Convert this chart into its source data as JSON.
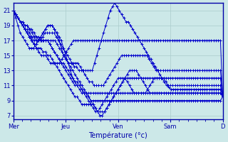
{
  "title": "",
  "xlabel": "Température (°c)",
  "ylabel": "",
  "bg_color": "#cce8e8",
  "grid_color": "#aacccc",
  "line_color": "#0000cc",
  "ylim": [
    6.5,
    22
  ],
  "yticks": [
    7,
    9,
    11,
    13,
    15,
    17,
    19,
    21
  ],
  "day_labels": [
    "Mer",
    "Jeu",
    "Ven",
    "Sam",
    "D"
  ],
  "day_positions": [
    0,
    24,
    48,
    72,
    96
  ],
  "series": [
    [
      21,
      20.5,
      20,
      19.5,
      19,
      18.5,
      18,
      17.5,
      17,
      16.5,
      16,
      15.5,
      15,
      15,
      15,
      14.5,
      14,
      14,
      14,
      14,
      14,
      14.5,
      15,
      15.5,
      16,
      16.5,
      17,
      17,
      17,
      17,
      17,
      17,
      17,
      17,
      17,
      17,
      17,
      17,
      17,
      17,
      17,
      17,
      17,
      17,
      17,
      17,
      17,
      17,
      17,
      17,
      17,
      17,
      17,
      17,
      17,
      17,
      17,
      17,
      17,
      17,
      17,
      17,
      17,
      17,
      17,
      17,
      17,
      17,
      17,
      17,
      17,
      17,
      17,
      17,
      17,
      17,
      17,
      17,
      17,
      17,
      17,
      17,
      17,
      17,
      17,
      17,
      17,
      17,
      17,
      17,
      17,
      9.5
    ],
    [
      21,
      20,
      19,
      18,
      17.5,
      17,
      16.5,
      16,
      16,
      16,
      16.5,
      17,
      17,
      17.5,
      18,
      18,
      18,
      18,
      18,
      17.5,
      17,
      16.5,
      16,
      15.5,
      15,
      14.5,
      14,
      13.5,
      13.5,
      13,
      13,
      13,
      13,
      13,
      13,
      13,
      14,
      15,
      16,
      17,
      18,
      19,
      20,
      21,
      21.5,
      22,
      21.5,
      21,
      20.5,
      20,
      19.5,
      19.5,
      19,
      18.5,
      18,
      17.5,
      17,
      16.5,
      16,
      15.5,
      15,
      14.5,
      14,
      13.5,
      13,
      12.5,
      12,
      11.5,
      11,
      10.8,
      10.5,
      10.5,
      10.5,
      10.5,
      10.5,
      10.5,
      10.5,
      10.5,
      10.5,
      10.5,
      10.5,
      10.5,
      10.5,
      10.5,
      10.5,
      10.5,
      10.5,
      10.5,
      10.5,
      10.5,
      10.5,
      10.5,
      10.5,
      9.5
    ],
    [
      21,
      20.5,
      20,
      19.5,
      19,
      18.5,
      18,
      17.5,
      17,
      16.5,
      16.5,
      17,
      17.5,
      18,
      18.5,
      19,
      19,
      19,
      18.5,
      18,
      17.5,
      17,
      16,
      15,
      14,
      13,
      12,
      11.5,
      11.5,
      11,
      10.5,
      10,
      9.5,
      9,
      8.5,
      8,
      7.5,
      7.5,
      8,
      8.5,
      9,
      9.5,
      10,
      10.5,
      11,
      11.5,
      12,
      12,
      12,
      12,
      11.5,
      11,
      10.5,
      10,
      10,
      10,
      10,
      10,
      10,
      10.5,
      11,
      11.5,
      12,
      12,
      12,
      12,
      12,
      11.5,
      11,
      11,
      11,
      11,
      11,
      11,
      11,
      11,
      11,
      11,
      11,
      11,
      11,
      11,
      11,
      11,
      11,
      11,
      11,
      11,
      11,
      11,
      11,
      11,
      9.5
    ],
    [
      21,
      20.5,
      20,
      19.5,
      19,
      18.5,
      18,
      17.5,
      17,
      16.5,
      16,
      16,
      16,
      15.5,
      15.5,
      15,
      15,
      14.5,
      14,
      13.5,
      13,
      12.5,
      12,
      11.5,
      11,
      10.5,
      10,
      9.5,
      9.5,
      9,
      8.5,
      8.5,
      8.5,
      8.5,
      8.5,
      8.5,
      8,
      7.5,
      7.5,
      7.5,
      7.5,
      8,
      8.5,
      9,
      9.5,
      10,
      10.5,
      11,
      11.5,
      12,
      12.5,
      13,
      13,
      13,
      13,
      12.5,
      12,
      11.5,
      11,
      10.5,
      10,
      10,
      10,
      10,
      10,
      10,
      10,
      10,
      10,
      10,
      10,
      10,
      10,
      10,
      10,
      10,
      10,
      10,
      10,
      10,
      10,
      10,
      10,
      10,
      10,
      10,
      10,
      10,
      10,
      10,
      10,
      10,
      9.5
    ],
    [
      21,
      20.5,
      20,
      19.5,
      19,
      18.5,
      18.5,
      18,
      17.5,
      17.5,
      17,
      17,
      17.5,
      18,
      18.5,
      19,
      19,
      19,
      18.5,
      18,
      17,
      16,
      15,
      14.5,
      14,
      13.5,
      13,
      12.5,
      12,
      11.5,
      11,
      10.5,
      10,
      9.5,
      9,
      8.5,
      8,
      7.5,
      7,
      7,
      7.5,
      8,
      8.5,
      9,
      9.5,
      10,
      10.5,
      11,
      11.5,
      12,
      12,
      12,
      12,
      12,
      12,
      12,
      12,
      12,
      12,
      12,
      12,
      12,
      12,
      12,
      12,
      12,
      12,
      12,
      12,
      12,
      12,
      12,
      12,
      12,
      12,
      12,
      12,
      12,
      12,
      12,
      12,
      12,
      12,
      12,
      12,
      12,
      12,
      12,
      12,
      12,
      12,
      12,
      9.5
    ],
    [
      21,
      20.5,
      20,
      19.5,
      19,
      18.5,
      18,
      17.5,
      17.5,
      17,
      17,
      17,
      17,
      17,
      17,
      17,
      16.5,
      16,
      15.5,
      15,
      14.5,
      14,
      13.5,
      13,
      12.5,
      12,
      11.5,
      11,
      11,
      10.5,
      10,
      10,
      10,
      9.5,
      9,
      9,
      9,
      9,
      9,
      9,
      9,
      9,
      9,
      9,
      9,
      9,
      9,
      9,
      9,
      9,
      9,
      9,
      9,
      9,
      9,
      9,
      9,
      9,
      9,
      9,
      9,
      9,
      9,
      9,
      9,
      9,
      9,
      9,
      9,
      9,
      9,
      9,
      9,
      9,
      9,
      9,
      9,
      9,
      9,
      9,
      9,
      9,
      9,
      9,
      9,
      9,
      9,
      9,
      9,
      9,
      9,
      9,
      9.5
    ],
    [
      21,
      20.5,
      20,
      19.5,
      19.5,
      19,
      19,
      18.5,
      18.5,
      18,
      17.5,
      17.5,
      17,
      17,
      17,
      17,
      16.5,
      16,
      15.5,
      15,
      14.5,
      14,
      14,
      13.5,
      13,
      12.5,
      12,
      11.5,
      11,
      11,
      10.5,
      10,
      10,
      10,
      10,
      10,
      10,
      10,
      10,
      10,
      10,
      10,
      10,
      10,
      10,
      10,
      10,
      10,
      10,
      10,
      10,
      10,
      10,
      10,
      10,
      10,
      10,
      10,
      10,
      10,
      10,
      10,
      10,
      10,
      10,
      10,
      10,
      10,
      10,
      10,
      10,
      10,
      10,
      10,
      10,
      10,
      10,
      10,
      10,
      10,
      10,
      10,
      10,
      10,
      10,
      10,
      10,
      10,
      10,
      10,
      10,
      10,
      9.5
    ],
    [
      21,
      20.5,
      20,
      19.5,
      19.5,
      19,
      19,
      18.5,
      18,
      17.5,
      17.5,
      17,
      17,
      17,
      17,
      17,
      17,
      17,
      17,
      16.5,
      16,
      15.5,
      15,
      14.5,
      14,
      14,
      14,
      14,
      14,
      13.5,
      13,
      12.5,
      12,
      11.5,
      11.5,
      11,
      11,
      11,
      11,
      11,
      11.5,
      12,
      12.5,
      13,
      13.5,
      14,
      14.5,
      15,
      15,
      15,
      15,
      15,
      15,
      15,
      15,
      15,
      15,
      15,
      15,
      14.5,
      14,
      13.5,
      13,
      13,
      13,
      13,
      13,
      13,
      13,
      13,
      13,
      13,
      13,
      13,
      13,
      13,
      13,
      13,
      13,
      13,
      13,
      13,
      13,
      13,
      13,
      13,
      13,
      13,
      13,
      13,
      13,
      9.5
    ]
  ]
}
